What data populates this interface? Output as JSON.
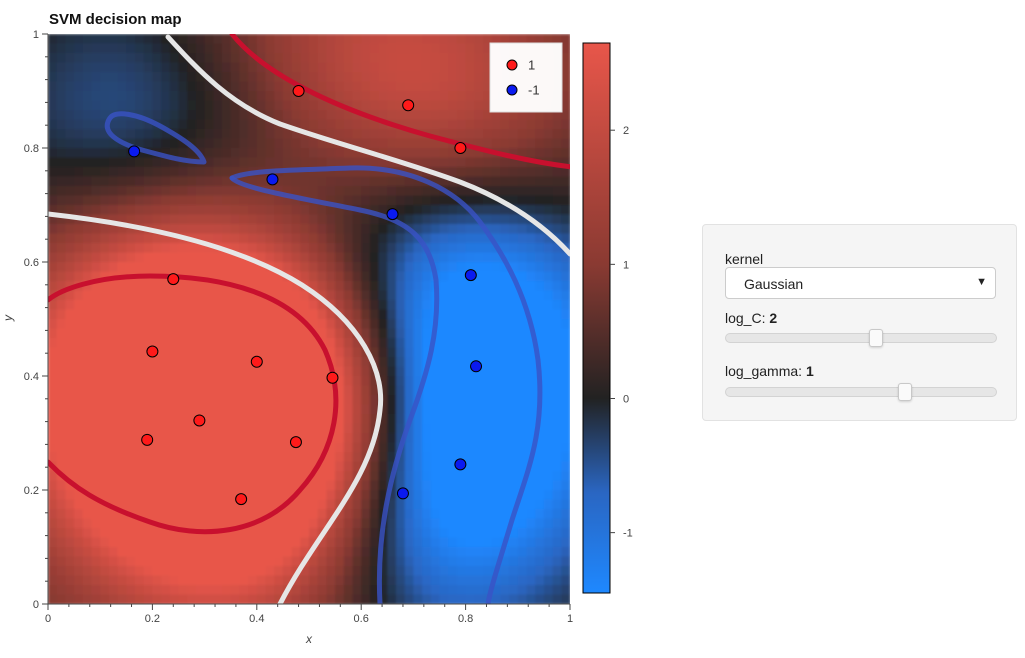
{
  "chart_data": {
    "type": "heatmap",
    "title": "SVM decision map",
    "xlabel": "x",
    "ylabel": "y",
    "xlim": [
      0,
      1
    ],
    "ylim": [
      0,
      1
    ],
    "x_ticks": [
      "0",
      "0.2",
      "0.4",
      "0.6",
      "0.8",
      "1"
    ],
    "y_ticks": [
      "0",
      "0.2",
      "0.4",
      "0.6",
      "0.8",
      "1"
    ],
    "colorbar": {
      "range": [
        -1.45,
        2.65
      ],
      "ticks": [
        "-1",
        "0",
        "1",
        "2"
      ],
      "tick_values": [
        -1,
        0,
        1,
        2
      ],
      "colors": [
        "#1e88ff",
        "#2a66c2",
        "#222222",
        "#8a3a32",
        "#e8564a"
      ]
    },
    "contour_levels": [
      {
        "level": -1,
        "color": "#3a52c6"
      },
      {
        "level": 0,
        "color": "#e6e6e6"
      },
      {
        "level": 1,
        "color": "#c8102e"
      }
    ],
    "legend": {
      "position": "top-right",
      "entries": [
        {
          "label": "1",
          "color": "#ff1a1a"
        },
        {
          "label": "-1",
          "color": "#0a1af0"
        }
      ]
    },
    "series": [
      {
        "name": "1",
        "color": "#ff1a1a",
        "points": [
          {
            "x": 0.48,
            "y": 0.9
          },
          {
            "x": 0.69,
            "y": 0.875
          },
          {
            "x": 0.79,
            "y": 0.8
          },
          {
            "x": 0.24,
            "y": 0.57
          },
          {
            "x": 0.2,
            "y": 0.443
          },
          {
            "x": 0.4,
            "y": 0.425
          },
          {
            "x": 0.545,
            "y": 0.397
          },
          {
            "x": 0.29,
            "y": 0.322
          },
          {
            "x": 0.19,
            "y": 0.288
          },
          {
            "x": 0.475,
            "y": 0.284
          },
          {
            "x": 0.37,
            "y": 0.184
          }
        ]
      },
      {
        "name": "-1",
        "color": "#0a1af0",
        "points": [
          {
            "x": 0.165,
            "y": 0.794
          },
          {
            "x": 0.43,
            "y": 0.745
          },
          {
            "x": 0.66,
            "y": 0.684
          },
          {
            "x": 0.81,
            "y": 0.577
          },
          {
            "x": 0.82,
            "y": 0.417
          },
          {
            "x": 0.79,
            "y": 0.245
          },
          {
            "x": 0.68,
            "y": 0.194
          }
        ]
      }
    ]
  },
  "controls": {
    "kernel_label": "kernel",
    "kernel_value": "Gaussian",
    "log_c_label": "log_C: ",
    "log_c_value": "2",
    "log_c_fraction": 0.56,
    "log_gamma_label": "log_gamma: ",
    "log_gamma_value": "1",
    "log_gamma_fraction": 0.67
  }
}
